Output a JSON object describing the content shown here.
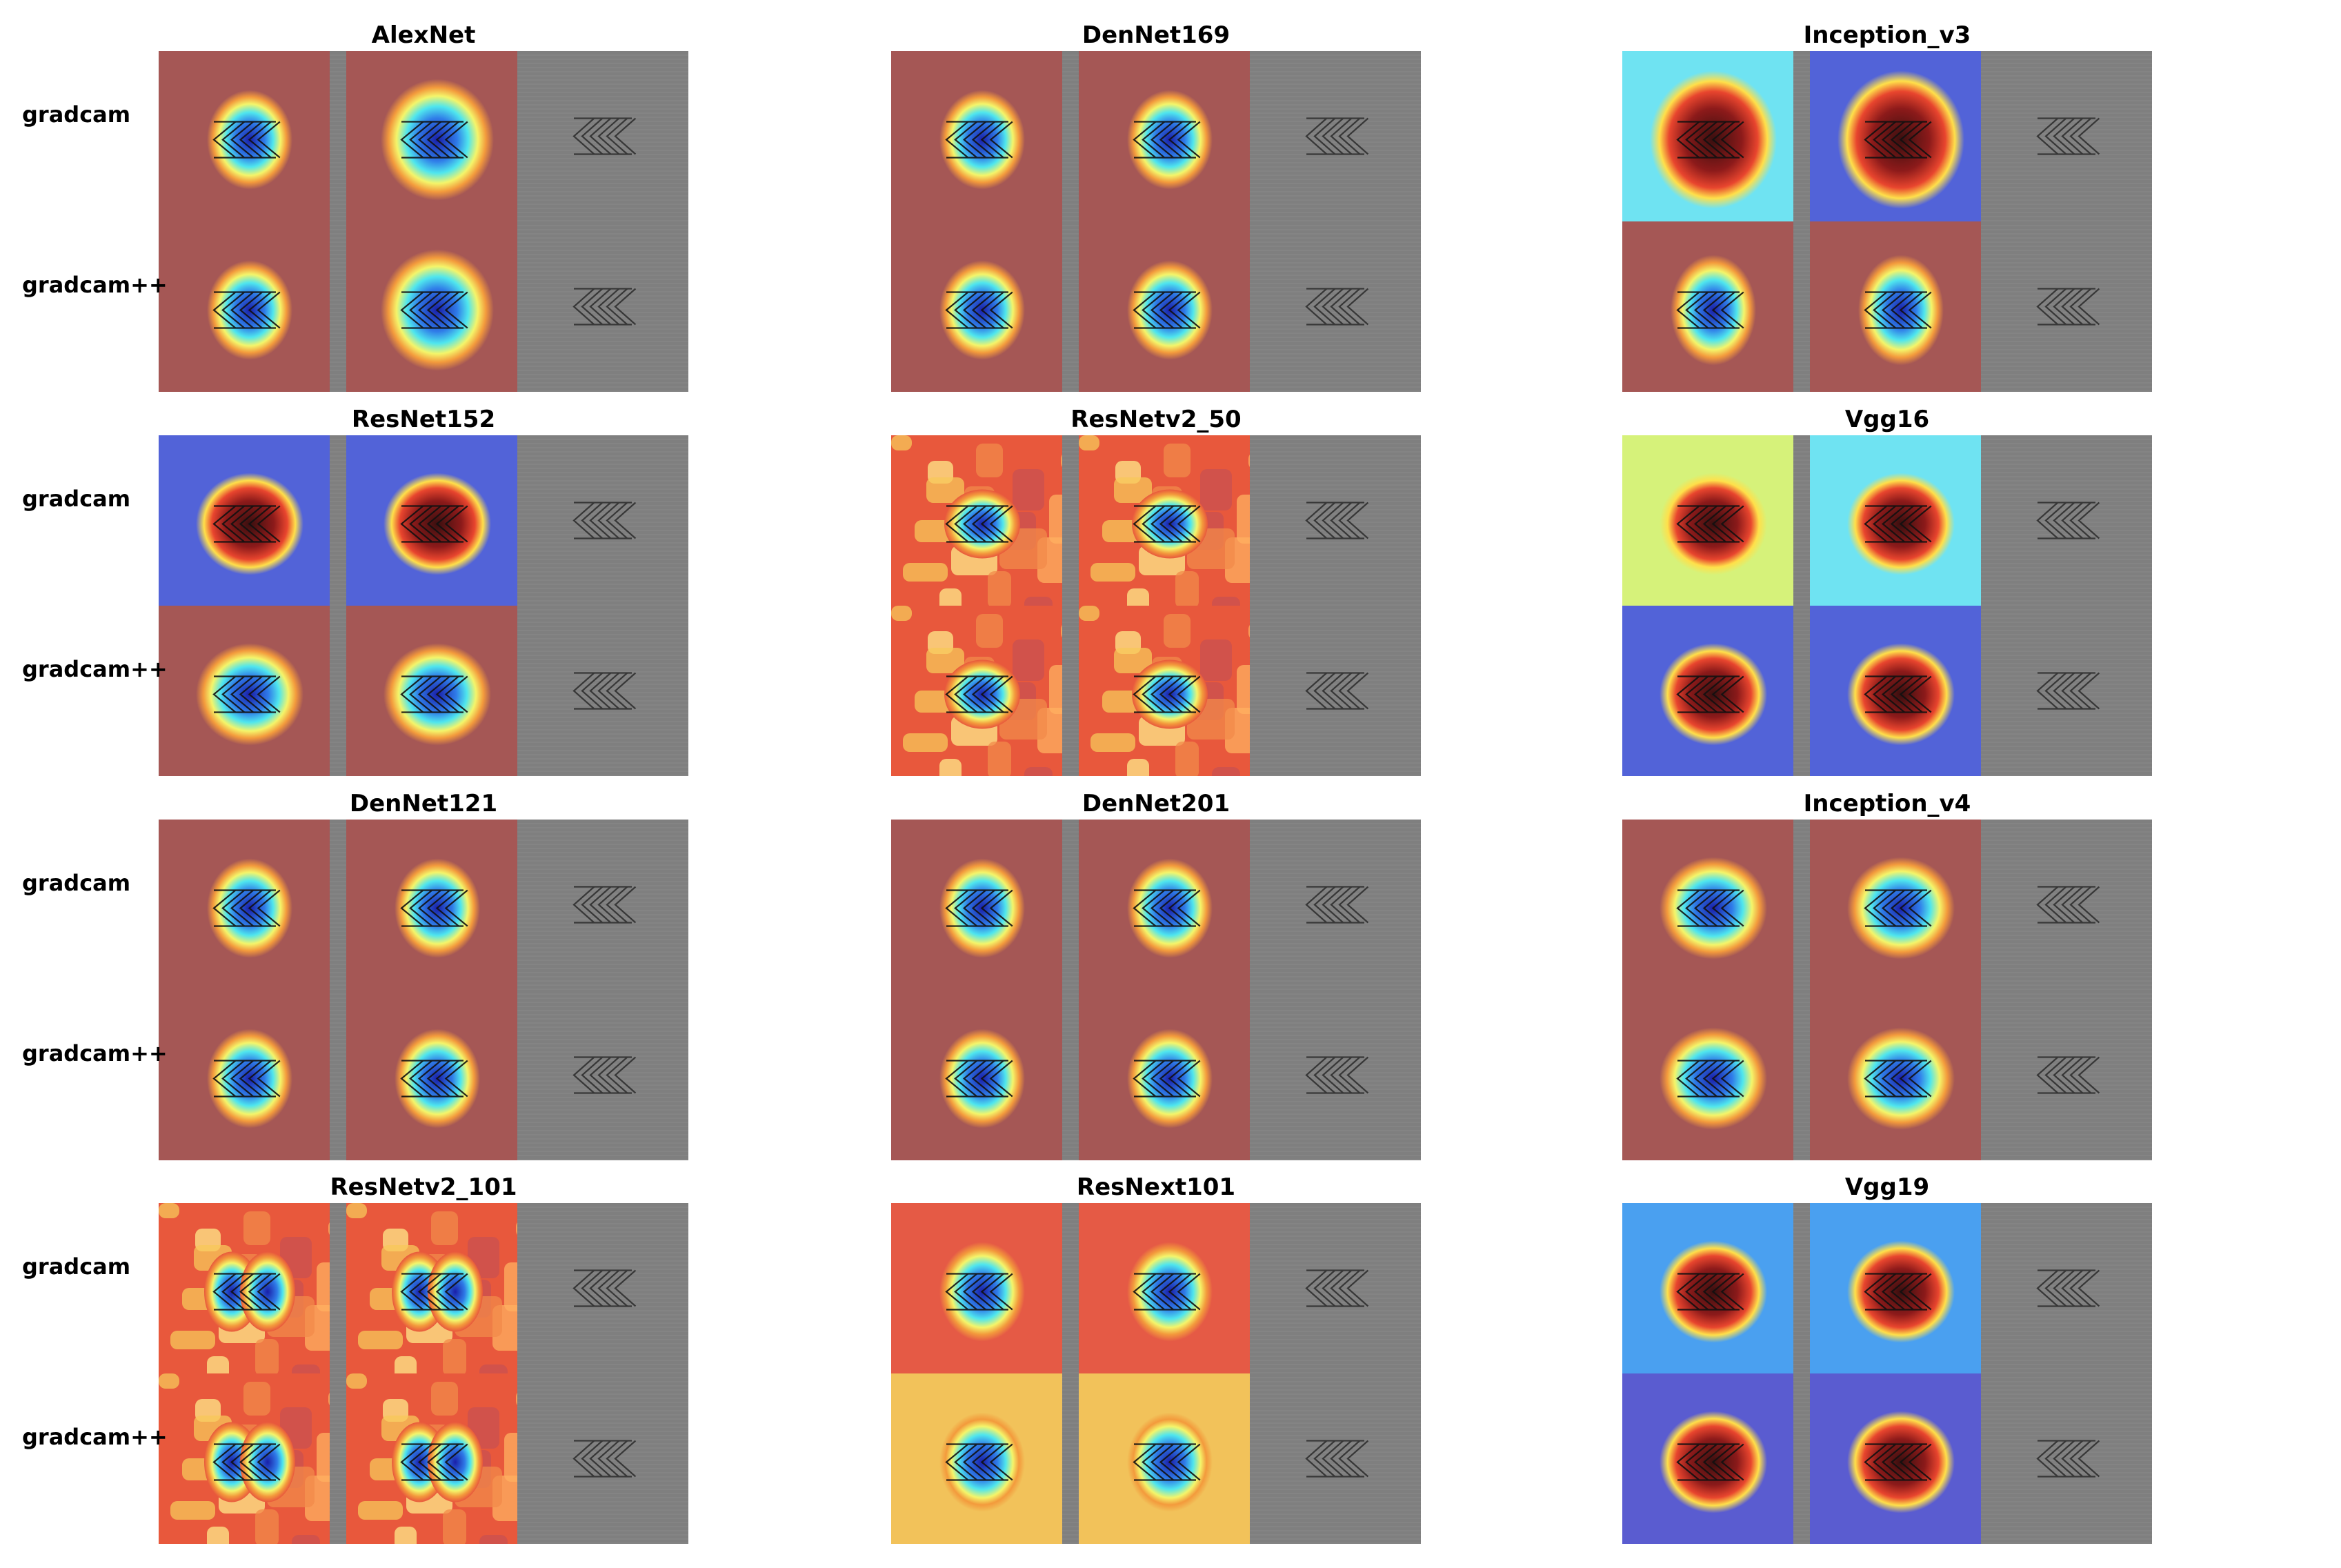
{
  "figure": {
    "row_labels": [
      "gradcam",
      "gradcam++"
    ],
    "panels": [
      {
        "title": "AlexNet",
        "cam": [
          [
            "red",
            "red"
          ],
          [
            "red",
            "red"
          ]
        ],
        "blobs": [
          [
            "tight",
            "wide"
          ],
          [
            "tight",
            "wide"
          ]
        ]
      },
      {
        "title": "DenNet169",
        "cam": [
          [
            "red",
            "red"
          ],
          [
            "red",
            "red"
          ]
        ],
        "blobs": [
          [
            "tight",
            "tight"
          ],
          [
            "tight",
            "tight"
          ]
        ]
      },
      {
        "title": "Inception_v3",
        "cam": [
          [
            "cyan",
            "blue"
          ],
          [
            "red",
            "red"
          ]
        ],
        "blobs": [
          [
            "hot-oval",
            "hot-oval"
          ],
          [
            "oval",
            "oval"
          ]
        ]
      },
      {
        "title": "ResNet152",
        "cam": [
          [
            "blue",
            "blue"
          ],
          [
            "red",
            "red"
          ]
        ],
        "blobs": [
          [
            "hot-square",
            "hot-square"
          ],
          [
            "square",
            "square"
          ]
        ]
      },
      {
        "title": "ResNetv2_50",
        "cam": [
          [
            "patchy",
            "patchy"
          ],
          [
            "patchy",
            "patchy"
          ]
        ],
        "blobs": [
          [
            "patchy",
            "patchy"
          ],
          [
            "patchy",
            "patchy"
          ]
        ]
      },
      {
        "title": "Vgg16",
        "cam": [
          [
            "lime",
            "cyan"
          ],
          [
            "blue",
            "blue"
          ]
        ],
        "blobs": [
          [
            "hot-square",
            "hot-square"
          ],
          [
            "hot-square",
            "hot-square"
          ]
        ]
      },
      {
        "title": "DenNet121",
        "cam": [
          [
            "red",
            "red"
          ],
          [
            "red",
            "red"
          ]
        ],
        "blobs": [
          [
            "tight",
            "tight"
          ],
          [
            "tight",
            "tight"
          ]
        ]
      },
      {
        "title": "DenNet201",
        "cam": [
          [
            "red",
            "red"
          ],
          [
            "red",
            "red"
          ]
        ],
        "blobs": [
          [
            "tight",
            "tight"
          ],
          [
            "tight",
            "tight"
          ]
        ]
      },
      {
        "title": "Inception_v4",
        "cam": [
          [
            "red",
            "red"
          ],
          [
            "red",
            "red"
          ]
        ],
        "blobs": [
          [
            "square",
            "square"
          ],
          [
            "square",
            "square"
          ]
        ]
      },
      {
        "title": "ResNetv2_101",
        "cam": [
          [
            "patchy",
            "patchy"
          ],
          [
            "patchy",
            "patchy"
          ]
        ],
        "blobs": [
          [
            "double",
            "double"
          ],
          [
            "double",
            "double"
          ]
        ]
      },
      {
        "title": "ResNext101",
        "cam": [
          [
            "orange",
            "orange"
          ],
          [
            "yellow",
            "yellow"
          ]
        ],
        "blobs": [
          [
            "tight",
            "tight"
          ],
          [
            "tight",
            "tight"
          ]
        ]
      },
      {
        "title": "Vgg19",
        "cam": [
          [
            "sky",
            "sky"
          ],
          [
            "navy",
            "navy"
          ]
        ],
        "blobs": [
          [
            "hot-square",
            "hot-square"
          ],
          [
            "hot-square",
            "hot-square"
          ]
        ]
      }
    ]
  },
  "colors": {
    "red": "#a55755",
    "blue": "#5263d8",
    "cyan": "#6fe3f2",
    "lime": "#d6f27a",
    "sky": "#4aa0f0",
    "navy": "#5a5cd0",
    "orange": "#e55a45",
    "yellow": "#f2c25a",
    "guided_gray": "#7f7f7f",
    "hot_core": "#3a0f0f"
  }
}
